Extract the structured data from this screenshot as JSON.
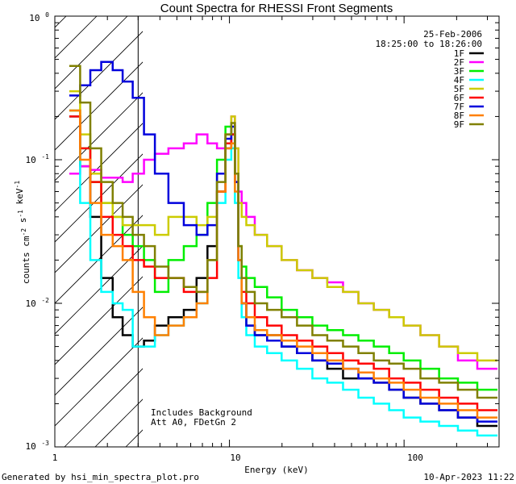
{
  "chart_data": {
    "type": "line",
    "title": "Count Spectra for RHESSI Front Segments",
    "xlabel": "Energy (keV)",
    "ylabel": "counts cm^-2 s^-1 keV^-1",
    "xscale": "log",
    "yscale": "log",
    "xlim": [
      1,
      350
    ],
    "ylim": [
      0.001,
      1
    ],
    "date": "25-Feb-2006",
    "time_range": "18:25:00 to 18:26:00",
    "annotation_lines": [
      "Includes Background",
      "Att A0, FDetGn 2"
    ],
    "hatched_region": [
      1,
      3
    ],
    "x_tick_labels": [
      "1",
      "10",
      "100"
    ],
    "y_tick_labels": [
      "10^0",
      "10^-1",
      "10^-2",
      "10^-3"
    ],
    "legend_position": "top-right",
    "footer_left": "Generated by hsi_min_spectra_plot.pro",
    "footer_right": "10-Apr-2023 11:22",
    "series": [
      {
        "name": "1F",
        "color": "#000000",
        "x": [
          1.3,
          1.5,
          1.7,
          2.0,
          2.3,
          2.6,
          3.0,
          3.5,
          4.0,
          5.0,
          6.0,
          7.0,
          8.0,
          9.0,
          10.0,
          10.5,
          11.0,
          11.5,
          12.0,
          13.0,
          15.0,
          18.0,
          22.0,
          27.0,
          33.0,
          40.0,
          50.0,
          60.0,
          75.0,
          90.0,
          110.0,
          140.0,
          180.0,
          230.0,
          300.0
        ],
        "y": [
          0.2,
          0.09,
          0.04,
          0.015,
          0.008,
          0.006,
          0.005,
          0.0055,
          0.007,
          0.008,
          0.009,
          0.015,
          0.025,
          0.06,
          0.12,
          0.15,
          0.07,
          0.02,
          0.01,
          0.007,
          0.006,
          0.006,
          0.005,
          0.0045,
          0.004,
          0.0035,
          0.003,
          0.003,
          0.0028,
          0.0025,
          0.0022,
          0.002,
          0.0018,
          0.0016,
          0.0014
        ]
      },
      {
        "name": "2F",
        "color": "#ff00ff",
        "x": [
          1.3,
          1.5,
          1.7,
          2.0,
          2.3,
          2.6,
          3.0,
          3.5,
          4.0,
          5.0,
          6.0,
          7.0,
          8.0,
          9.0,
          10.0,
          10.5,
          11.0,
          11.5,
          12.0,
          13.0,
          15.0,
          18.0,
          22.0,
          27.0,
          33.0,
          40.0,
          50.0,
          60.0,
          75.0,
          90.0,
          110.0,
          140.0,
          180.0,
          230.0,
          300.0
        ],
        "y": [
          0.08,
          0.09,
          0.085,
          0.075,
          0.075,
          0.07,
          0.08,
          0.1,
          0.11,
          0.12,
          0.13,
          0.15,
          0.13,
          0.12,
          0.15,
          0.2,
          0.12,
          0.06,
          0.05,
          0.04,
          0.03,
          0.025,
          0.02,
          0.017,
          0.015,
          0.014,
          0.012,
          0.01,
          0.009,
          0.008,
          0.007,
          0.006,
          0.005,
          0.004,
          0.0035
        ]
      },
      {
        "name": "3F",
        "color": "#00ee00",
        "x": [
          1.3,
          1.5,
          1.7,
          2.0,
          2.3,
          2.6,
          3.0,
          3.5,
          4.0,
          5.0,
          6.0,
          7.0,
          8.0,
          9.0,
          10.0,
          10.5,
          11.0,
          11.5,
          12.0,
          13.0,
          15.0,
          18.0,
          22.0,
          27.0,
          33.0,
          40.0,
          50.0,
          60.0,
          75.0,
          90.0,
          110.0,
          140.0,
          180.0,
          230.0,
          300.0
        ],
        "y": [
          0.22,
          0.12,
          0.07,
          0.05,
          0.04,
          0.03,
          0.025,
          0.02,
          0.012,
          0.02,
          0.025,
          0.03,
          0.05,
          0.1,
          0.17,
          0.15,
          0.08,
          0.025,
          0.018,
          0.015,
          0.013,
          0.011,
          0.009,
          0.008,
          0.007,
          0.0065,
          0.006,
          0.0055,
          0.005,
          0.0045,
          0.004,
          0.0035,
          0.003,
          0.0028,
          0.0025
        ]
      },
      {
        "name": "4F",
        "color": "#00ffff",
        "x": [
          1.3,
          1.5,
          1.7,
          2.0,
          2.3,
          2.6,
          3.0,
          3.5,
          4.0,
          5.0,
          6.0,
          7.0,
          8.0,
          9.0,
          10.0,
          10.5,
          11.0,
          11.5,
          12.0,
          13.0,
          15.0,
          18.0,
          22.0,
          27.0,
          33.0,
          40.0,
          50.0,
          60.0,
          75.0,
          90.0,
          110.0,
          140.0,
          180.0,
          230.0,
          300.0
        ],
        "y": [
          0.2,
          0.05,
          0.02,
          0.012,
          0.01,
          0.009,
          0.005,
          0.005,
          0.006,
          0.007,
          0.008,
          0.01,
          0.02,
          0.05,
          0.1,
          0.12,
          0.05,
          0.015,
          0.008,
          0.006,
          0.005,
          0.0045,
          0.004,
          0.0035,
          0.003,
          0.0028,
          0.0025,
          0.0022,
          0.002,
          0.0018,
          0.0016,
          0.0015,
          0.0014,
          0.0013,
          0.0012
        ]
      },
      {
        "name": "5F",
        "color": "#cccc00",
        "x": [
          1.3,
          1.5,
          1.7,
          2.0,
          2.3,
          2.6,
          3.0,
          3.5,
          4.0,
          5.0,
          6.0,
          7.0,
          8.0,
          9.0,
          10.0,
          10.5,
          11.0,
          11.5,
          12.0,
          13.0,
          15.0,
          18.0,
          22.0,
          27.0,
          33.0,
          40.0,
          50.0,
          60.0,
          75.0,
          90.0,
          110.0,
          140.0,
          180.0,
          230.0,
          300.0
        ],
        "y": [
          0.3,
          0.15,
          0.08,
          0.05,
          0.04,
          0.035,
          0.035,
          0.035,
          0.03,
          0.04,
          0.04,
          0.035,
          0.04,
          0.08,
          0.15,
          0.2,
          0.12,
          0.05,
          0.04,
          0.035,
          0.03,
          0.025,
          0.02,
          0.017,
          0.015,
          0.013,
          0.012,
          0.01,
          0.009,
          0.008,
          0.007,
          0.006,
          0.005,
          0.0045,
          0.004
        ]
      },
      {
        "name": "6F",
        "color": "#ff0000",
        "x": [
          1.3,
          1.5,
          1.7,
          2.0,
          2.3,
          2.6,
          3.0,
          3.5,
          4.0,
          5.0,
          6.0,
          7.0,
          8.0,
          9.0,
          10.0,
          10.5,
          11.0,
          11.5,
          12.0,
          13.0,
          15.0,
          18.0,
          22.0,
          27.0,
          33.0,
          40.0,
          50.0,
          60.0,
          75.0,
          90.0,
          110.0,
          140.0,
          180.0,
          230.0,
          300.0
        ],
        "y": [
          0.2,
          0.12,
          0.07,
          0.04,
          0.03,
          0.025,
          0.02,
          0.018,
          0.015,
          0.015,
          0.012,
          0.012,
          0.015,
          0.06,
          0.13,
          0.15,
          0.07,
          0.02,
          0.012,
          0.01,
          0.008,
          0.007,
          0.006,
          0.0055,
          0.005,
          0.0045,
          0.004,
          0.0038,
          0.0035,
          0.003,
          0.0028,
          0.0025,
          0.0022,
          0.002,
          0.0018
        ]
      },
      {
        "name": "7F",
        "color": "#0000dd",
        "x": [
          1.3,
          1.5,
          1.7,
          2.0,
          2.3,
          2.6,
          3.0,
          3.5,
          4.0,
          5.0,
          6.0,
          7.0,
          8.0,
          9.0,
          10.0,
          10.5,
          11.0,
          11.5,
          12.0,
          13.0,
          15.0,
          18.0,
          22.0,
          27.0,
          33.0,
          40.0,
          50.0,
          60.0,
          75.0,
          90.0,
          110.0,
          140.0,
          180.0,
          230.0,
          300.0
        ],
        "y": [
          0.28,
          0.33,
          0.42,
          0.48,
          0.42,
          0.35,
          0.27,
          0.15,
          0.08,
          0.05,
          0.035,
          0.03,
          0.035,
          0.08,
          0.14,
          0.17,
          0.07,
          0.02,
          0.01,
          0.007,
          0.006,
          0.0055,
          0.005,
          0.0045,
          0.004,
          0.0038,
          0.0035,
          0.003,
          0.0028,
          0.0025,
          0.0022,
          0.002,
          0.0018,
          0.0016,
          0.0015
        ]
      },
      {
        "name": "8F",
        "color": "#ff8000",
        "x": [
          1.3,
          1.5,
          1.7,
          2.0,
          2.3,
          2.6,
          3.0,
          3.5,
          4.0,
          5.0,
          6.0,
          7.0,
          8.0,
          9.0,
          10.0,
          10.5,
          11.0,
          11.5,
          12.0,
          13.0,
          15.0,
          18.0,
          22.0,
          27.0,
          33.0,
          40.0,
          50.0,
          60.0,
          75.0,
          90.0,
          110.0,
          140.0,
          180.0,
          230.0,
          300.0
        ],
        "y": [
          0.22,
          0.1,
          0.05,
          0.03,
          0.025,
          0.02,
          0.012,
          0.008,
          0.006,
          0.007,
          0.008,
          0.01,
          0.02,
          0.06,
          0.12,
          0.13,
          0.06,
          0.02,
          0.01,
          0.008,
          0.0065,
          0.006,
          0.0055,
          0.005,
          0.0045,
          0.004,
          0.0035,
          0.0033,
          0.003,
          0.0028,
          0.0025,
          0.0022,
          0.002,
          0.0018,
          0.0016
        ]
      },
      {
        "name": "9F",
        "color": "#808000",
        "x": [
          1.3,
          1.5,
          1.7,
          2.0,
          2.3,
          2.6,
          3.0,
          3.5,
          4.0,
          5.0,
          6.0,
          7.0,
          8.0,
          9.0,
          10.0,
          10.5,
          11.0,
          11.5,
          12.0,
          13.0,
          15.0,
          18.0,
          22.0,
          27.0,
          33.0,
          40.0,
          50.0,
          60.0,
          75.0,
          90.0,
          110.0,
          140.0,
          180.0,
          230.0,
          300.0
        ],
        "y": [
          0.45,
          0.25,
          0.12,
          0.07,
          0.05,
          0.04,
          0.03,
          0.025,
          0.018,
          0.015,
          0.013,
          0.012,
          0.02,
          0.07,
          0.15,
          0.18,
          0.08,
          0.025,
          0.015,
          0.012,
          0.01,
          0.009,
          0.008,
          0.007,
          0.006,
          0.0055,
          0.005,
          0.0045,
          0.004,
          0.0038,
          0.0035,
          0.003,
          0.0028,
          0.0025,
          0.0022
        ]
      }
    ]
  }
}
